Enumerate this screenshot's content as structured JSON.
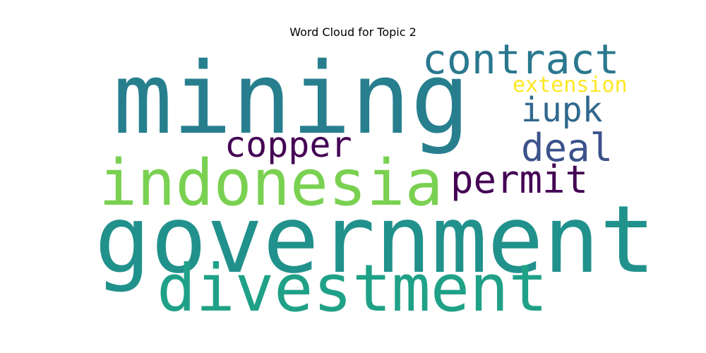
{
  "chart_data": {
    "type": "wordcloud",
    "title": "Word Cloud for Topic 2",
    "words": [
      {
        "text": "mining",
        "color": "#277f8e",
        "weight": 1.0
      },
      {
        "text": "government",
        "color": "#21918c",
        "weight": 0.95
      },
      {
        "text": "indonesia",
        "color": "#7ad151",
        "weight": 0.62
      },
      {
        "text": "divestment",
        "color": "#1fa187",
        "weight": 0.6
      },
      {
        "text": "contract",
        "color": "#2a788e",
        "weight": 0.36
      },
      {
        "text": "permit",
        "color": "#440154",
        "weight": 0.33
      },
      {
        "text": "copper",
        "color": "#440154",
        "weight": 0.3
      },
      {
        "text": "deal",
        "color": "#3b528b",
        "weight": 0.3
      },
      {
        "text": "iupk",
        "color": "#31688e",
        "weight": 0.28
      },
      {
        "text": "extension",
        "color": "#fde725",
        "weight": 0.2
      }
    ]
  }
}
